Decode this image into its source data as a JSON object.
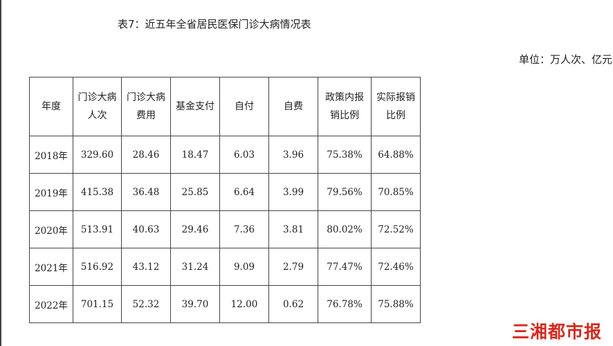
{
  "title": "表7：近五年全省居民医保门诊大病情况表",
  "unit": "单位：万人次、亿元",
  "table": {
    "headers": [
      [
        "年度"
      ],
      [
        "门诊大病",
        "人次"
      ],
      [
        "门诊大病",
        "费用"
      ],
      [
        "基金支付"
      ],
      [
        "自付"
      ],
      [
        "自费"
      ],
      [
        "政策内报",
        "销比例"
      ],
      [
        "实际报销",
        "比例"
      ]
    ],
    "rows": [
      [
        "2018年",
        "329.60",
        "28.46",
        "18.47",
        "6.03",
        "3.96",
        "75.38%",
        "64.88%"
      ],
      [
        "2019年",
        "415.38",
        "36.48",
        "25.85",
        "6.64",
        "3.99",
        "79.56%",
        "70.85%"
      ],
      [
        "2020年",
        "513.91",
        "40.63",
        "29.46",
        "7.36",
        "3.81",
        "80.02%",
        "72.52%"
      ],
      [
        "2021年",
        "516.92",
        "43.12",
        "31.24",
        "9.09",
        "2.79",
        "77.47%",
        "72.46%"
      ],
      [
        "2022年",
        "701.15",
        "52.32",
        "39.70",
        "12.00",
        "0.62",
        "76.78%",
        "75.88%"
      ]
    ]
  },
  "watermark": "三湘都市报",
  "colors": {
    "watermark": "#d42a20"
  }
}
